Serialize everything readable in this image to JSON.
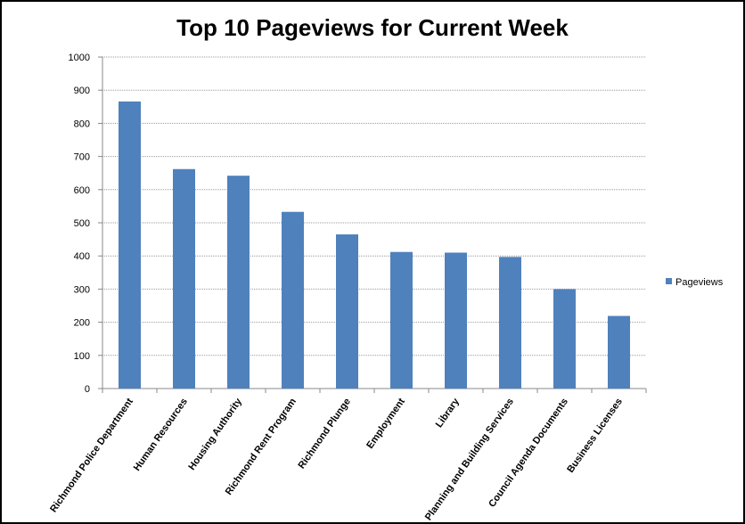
{
  "chart_data": {
    "type": "bar",
    "title": "Top 10 Pageviews for Current Week",
    "categories": [
      "Richmond Police Department",
      "Human Resources",
      "Housing Authority",
      "Richmond Rent Program",
      "Richmond Plunge",
      "Employment",
      "Library",
      "Planning and Building Services",
      "Council Agenda Documents",
      "Business Licenses"
    ],
    "series": [
      {
        "name": "Pageviews",
        "color": "#4f81bd",
        "values": [
          866,
          662,
          642,
          533,
          465,
          412,
          410,
          397,
          300,
          219
        ]
      }
    ],
    "ylim": [
      0,
      1000
    ],
    "yticks": [
      0,
      100,
      200,
      300,
      400,
      500,
      600,
      700,
      800,
      900,
      1000
    ],
    "grid": true,
    "legend": "right"
  }
}
